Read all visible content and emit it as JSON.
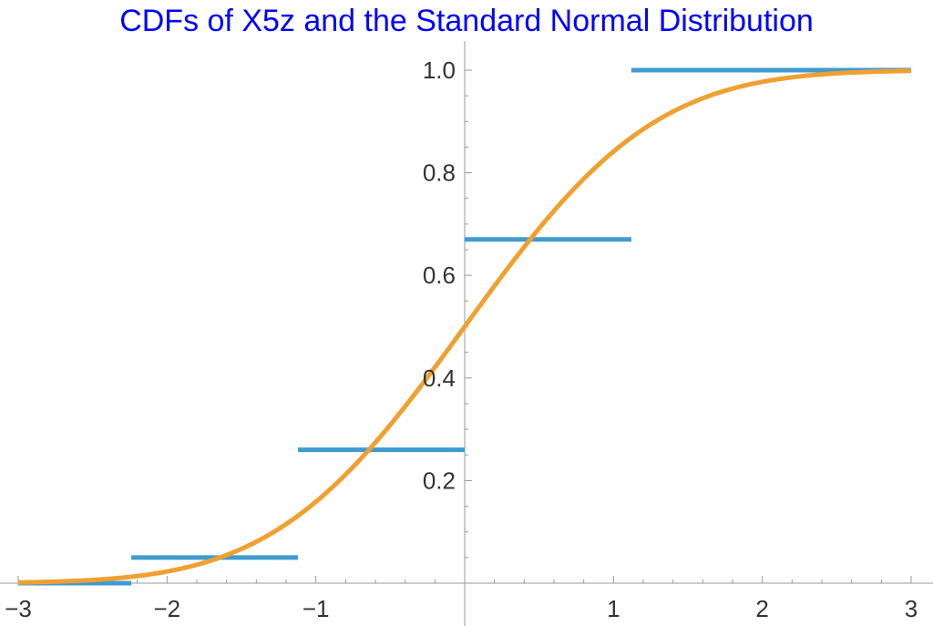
{
  "chart_data": {
    "type": "line",
    "title": "CDFs of X5z and the Standard Normal Distribution",
    "xlabel": "",
    "ylabel": "",
    "xlim": [
      -3,
      3
    ],
    "ylim": [
      0,
      1.0
    ],
    "x_ticks": [
      -3,
      -2,
      -1,
      1,
      2,
      3
    ],
    "x_tick_labels": [
      "−3",
      "−2",
      "−1",
      "1",
      "2",
      "3"
    ],
    "y_ticks": [
      0.2,
      0.4,
      0.6,
      0.8,
      1.0
    ],
    "y_tick_labels": [
      "0.2",
      "0.4",
      "0.6",
      "0.8",
      "1.0"
    ],
    "grid": false,
    "series": [
      {
        "type": "step",
        "color": "#3f9bd0",
        "segments": [
          {
            "x0": -3.0,
            "x1": -2.24,
            "y": 0.0
          },
          {
            "x0": -2.24,
            "x1": -1.12,
            "y": 0.05
          },
          {
            "x0": -1.12,
            "x1": 0.0,
            "y": 0.26
          },
          {
            "x0": 0.0,
            "x1": 1.12,
            "y": 0.67
          },
          {
            "x0": 1.12,
            "x1": 3.0,
            "y": 1.0
          }
        ]
      },
      {
        "type": "curve",
        "function": "standard normal CDF",
        "color": "#f0a030",
        "x_range": [
          -3,
          3
        ]
      }
    ]
  }
}
